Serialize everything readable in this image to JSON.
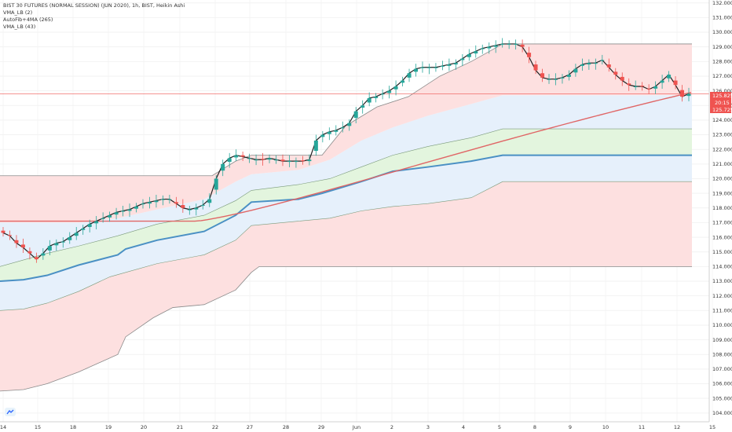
{
  "legend": [
    "BIST 30 FUTURES (NORMAL SESSION) (JUN 2020), 1h, BIST, Heikin Ashi",
    "VMA_LB (2)",
    "AutoFib+4MA (265)",
    "VMA_LB (43)"
  ],
  "price_tags": {
    "upper": "125.825",
    "middle": "20:15",
    "lower": "125.725"
  },
  "colors": {
    "bull": "#26a69a",
    "bear": "#ef5350",
    "ma": "#e06666",
    "mid_line": "#4a90c4",
    "band_red": "#fde0e0",
    "band_blue": "#e6f0fb",
    "band_green": "#e3f5de",
    "tag_red": "#ef5350"
  },
  "chart_data": {
    "type": "candlestick",
    "title": "BIST 30 FUTURES (NORMAL SESSION) (JUN 2020), 1h, BIST, Heikin Ashi",
    "x_tick_labels": [
      "14",
      "15",
      "18",
      "19",
      "20",
      "21",
      "22",
      "27",
      "28",
      "29",
      "Jun",
      "2",
      "3",
      "4",
      "5",
      "8",
      "9",
      "10",
      "11",
      "12",
      "15"
    ],
    "y_ticks": [
      "104.000",
      "105.000",
      "106.000",
      "107.000",
      "108.000",
      "109.000",
      "110.000",
      "111.000",
      "112.000",
      "113.000",
      "114.000",
      "115.000",
      "116.000",
      "117.000",
      "118.000",
      "119.000",
      "120.000",
      "121.000",
      "122.000",
      "123.000",
      "124.000",
      "125.000",
      "126.000",
      "127.000",
      "128.000",
      "129.000",
      "130.000",
      "131.000",
      "132.000"
    ],
    "ylim": [
      103.4,
      132.2
    ],
    "last_price": 125.825,
    "close_series": [
      116.3,
      116.1,
      115.6,
      115.3,
      114.9,
      114.5,
      114.9,
      115.4,
      115.6,
      115.7,
      116.0,
      116.3,
      116.6,
      116.9,
      117.1,
      117.3,
      117.5,
      117.7,
      117.8,
      117.9,
      118.1,
      118.3,
      118.4,
      118.5,
      118.6,
      118.6,
      118.3,
      118.0,
      117.9,
      118.0,
      118.2,
      118.6,
      120.0,
      121.0,
      121.4,
      121.6,
      121.5,
      121.4,
      121.3,
      121.3,
      121.4,
      121.3,
      121.2,
      121.2,
      121.2,
      121.2,
      121.3,
      122.6,
      123.0,
      123.2,
      123.3,
      123.5,
      123.8,
      124.6,
      125.0,
      125.5,
      125.6,
      125.8,
      126.0,
      126.3,
      126.7,
      127.2,
      127.5,
      127.6,
      127.6,
      127.6,
      127.7,
      127.8,
      127.9,
      128.2,
      128.5,
      128.7,
      128.9,
      129.0,
      129.1,
      129.2,
      129.2,
      129.2,
      129.0,
      128.3,
      127.4,
      126.9,
      126.8,
      126.8,
      126.9,
      127.1,
      127.5,
      127.8,
      127.9,
      127.9,
      128.1,
      127.6,
      127.1,
      126.7,
      126.4,
      126.3,
      126.3,
      126.1,
      126.3,
      126.7,
      127.1,
      126.4,
      125.6,
      125.8
    ],
    "overlays": {
      "vma_lb_2": "black step line following price",
      "ma_265": "red slow moving average from 117.1 to 125.9",
      "fib_mid": "blue step line from 113.0 to 121.6",
      "fib_bands": [
        "122.6-120.5 green",
        "119.8-117.6 blue",
        "117.6-114.0 red",
        "129.2-125.8 red"
      ]
    }
  }
}
